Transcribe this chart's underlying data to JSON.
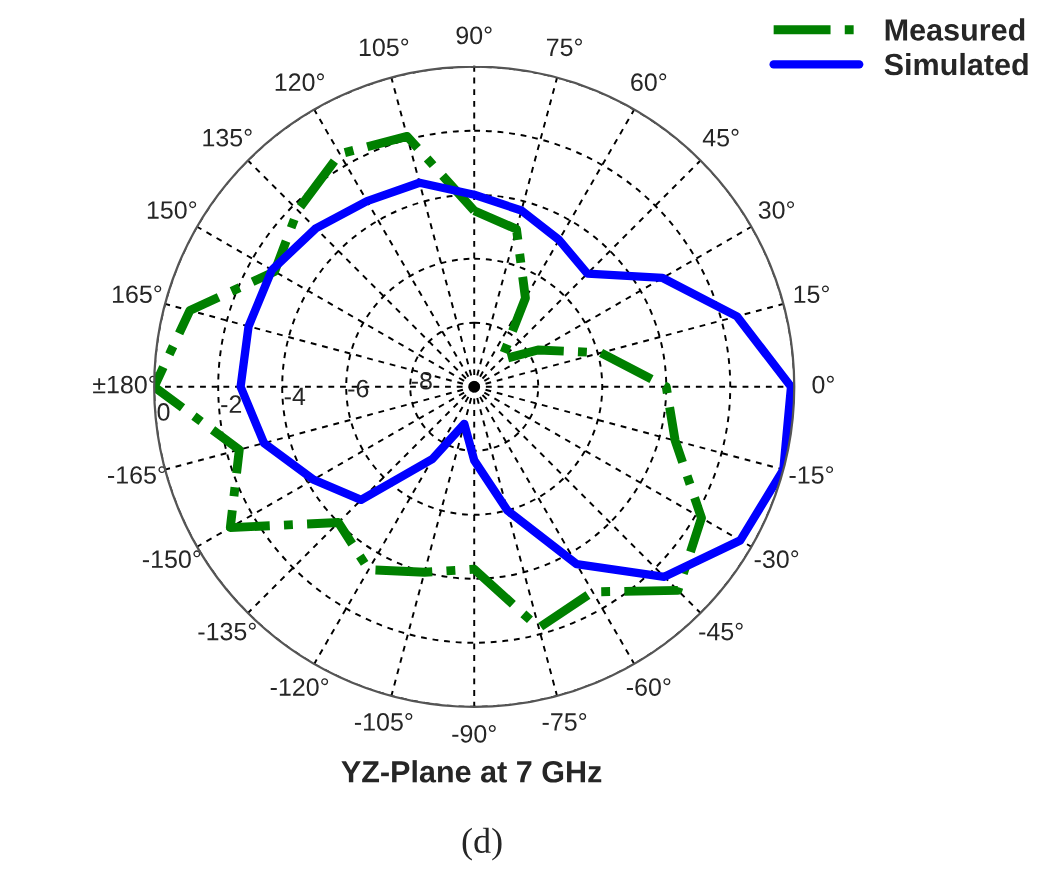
{
  "chart_data": {
    "type": "radar",
    "title": "YZ-Plane at 7 GHz",
    "annotations": [
      "(d)"
    ],
    "categories": [
      "90°",
      "75°",
      "60°",
      "45°",
      "30°",
      "15°",
      "0°",
      "-15°",
      "-30°",
      "-45°",
      "-60°",
      "-75°",
      "-90°",
      "-105°",
      "-120°",
      "-135°",
      "-150°",
      "-165°",
      "±180°",
      "165°",
      "150°",
      "135°",
      "120°",
      "105°"
    ],
    "series": [
      {
        "name": "Measured",
        "color": "#008000",
        "line_style": "dashdot",
        "values": [
          -4.5,
          -4.9,
          -6.8,
          -8.8,
          -7.7,
          -5.9,
          -4.0,
          -3.5,
          -1.8,
          -1.0,
          -2.6,
          -2.2,
          -4.3,
          -4.0,
          -3.4,
          -4.0,
          -1.2,
          -2.4,
          0.0,
          -0.8,
          -2.8,
          -2.2,
          -1.6,
          -1.9
        ]
      },
      {
        "name": "Simulated",
        "color": "#0000ff",
        "line_style": "solid",
        "values": [
          -4.0,
          -4.3,
          -4.7,
          -5.0,
          -3.2,
          -1.5,
          -0.1,
          0.0,
          -0.4,
          -1.6,
          -3.6,
          -6.0,
          -7.7,
          -8.8,
          -7.4,
          -5.0,
          -4.2,
          -3.2,
          -2.7,
          -2.7,
          -2.7,
          -3.0,
          -3.3,
          -3.4
        ]
      }
    ],
    "ylim": [
      -10,
      0
    ],
    "yticks": [
      -8,
      -6,
      -4,
      -2,
      0
    ],
    "grid": true,
    "legend": "top right"
  }
}
